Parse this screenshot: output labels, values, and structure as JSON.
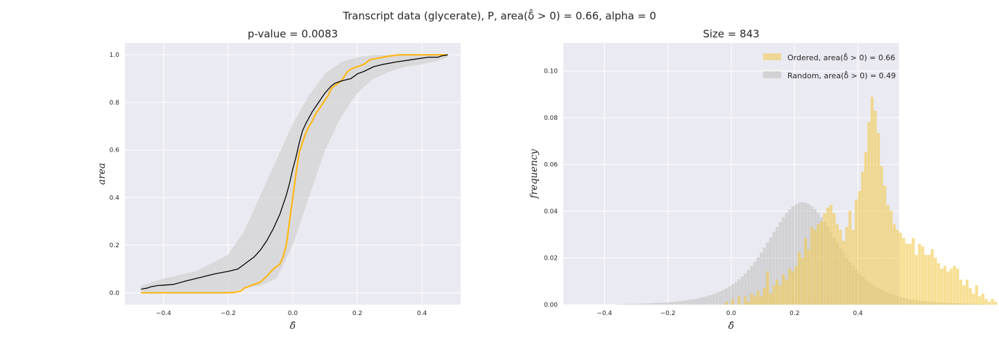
{
  "figure": {
    "suptitle": "Transcript data (glycerate), P, area(δ̂ > 0) = 0.66, alpha = 0"
  },
  "chart_data": [
    {
      "type": "line",
      "title": "p-value = 0.0083",
      "xlabel": "δ̂",
      "ylabel": "area",
      "xlim": [
        -0.52,
        0.52
      ],
      "ylim": [
        -0.05,
        1.05
      ],
      "xticks": [
        -0.4,
        -0.2,
        0.0,
        0.2,
        0.4
      ],
      "xtick_labels": [
        "−0.4",
        "−0.2",
        "0.0",
        "0.2",
        "0.4"
      ],
      "yticks": [
        0.0,
        0.2,
        0.4,
        0.6,
        0.8,
        1.0
      ],
      "ytick_labels": [
        "0.0",
        "0.2",
        "0.4",
        "0.6",
        "0.8",
        "1.0"
      ],
      "grid": true,
      "colors": {
        "ordered": "#FFB612",
        "random": "#000000",
        "band": "#d3d3d3",
        "bg": "#EAEAF2"
      },
      "series": [
        {
          "key": "ordered",
          "x": [
            -0.47,
            -0.2,
            -0.18,
            -0.16,
            -0.15,
            -0.13,
            -0.12,
            -0.1,
            -0.08,
            -0.06,
            -0.04,
            -0.03,
            -0.02,
            -0.01,
            0.0,
            0.01,
            0.02,
            0.03,
            0.04,
            0.05,
            0.06,
            0.07,
            0.08,
            0.09,
            0.1,
            0.11,
            0.12,
            0.13,
            0.14,
            0.15,
            0.16,
            0.17,
            0.18,
            0.2,
            0.22,
            0.24,
            0.26,
            0.28,
            0.3,
            0.33,
            0.36,
            0.4,
            0.44,
            0.48
          ],
          "y": [
            0.0,
            0.0,
            0.002,
            0.008,
            0.02,
            0.03,
            0.035,
            0.045,
            0.07,
            0.1,
            0.12,
            0.15,
            0.2,
            0.3,
            0.4,
            0.5,
            0.59,
            0.63,
            0.67,
            0.7,
            0.72,
            0.75,
            0.77,
            0.79,
            0.81,
            0.83,
            0.86,
            0.87,
            0.88,
            0.89,
            0.91,
            0.93,
            0.94,
            0.95,
            0.96,
            0.98,
            0.985,
            0.99,
            0.995,
            1.0,
            1.0,
            1.0,
            1.0,
            1.0
          ]
        },
        {
          "key": "random",
          "x": [
            -0.47,
            -0.45,
            -0.44,
            -0.42,
            -0.4,
            -0.37,
            -0.33,
            -0.3,
            -0.27,
            -0.24,
            -0.2,
            -0.17,
            -0.16,
            -0.14,
            -0.12,
            -0.1,
            -0.08,
            -0.06,
            -0.04,
            -0.02,
            -0.01,
            0.0,
            0.01,
            0.02,
            0.03,
            0.04,
            0.06,
            0.08,
            0.1,
            0.12,
            0.13,
            0.15,
            0.18,
            0.2,
            0.22,
            0.25,
            0.28,
            0.32,
            0.37,
            0.42,
            0.45,
            0.46,
            0.48
          ],
          "y": [
            0.015,
            0.02,
            0.025,
            0.03,
            0.032,
            0.035,
            0.05,
            0.06,
            0.07,
            0.08,
            0.09,
            0.1,
            0.11,
            0.13,
            0.15,
            0.18,
            0.22,
            0.27,
            0.33,
            0.41,
            0.46,
            0.52,
            0.57,
            0.63,
            0.68,
            0.71,
            0.76,
            0.8,
            0.84,
            0.87,
            0.88,
            0.89,
            0.9,
            0.92,
            0.93,
            0.95,
            0.96,
            0.97,
            0.98,
            0.99,
            0.99,
            0.995,
            1.0
          ]
        }
      ],
      "band": {
        "x": [
          -0.47,
          -0.4,
          -0.3,
          -0.2,
          -0.15,
          -0.1,
          -0.05,
          0.0,
          0.05,
          0.1,
          0.15,
          0.2,
          0.25,
          0.3,
          0.35,
          0.4,
          0.45,
          0.48
        ],
        "lower": [
          0.0,
          0.0,
          0.0,
          0.0,
          0.02,
          0.03,
          0.06,
          0.2,
          0.4,
          0.6,
          0.74,
          0.84,
          0.9,
          0.93,
          0.95,
          0.96,
          0.975,
          0.99
        ],
        "upper": [
          0.03,
          0.06,
          0.09,
          0.16,
          0.26,
          0.41,
          0.56,
          0.71,
          0.83,
          0.92,
          0.97,
          0.99,
          1.0,
          1.0,
          1.0,
          1.0,
          1.0,
          1.0
        ]
      }
    },
    {
      "type": "bar",
      "title": "Size = 843",
      "xlabel": "δ̂",
      "ylabel": "frequency",
      "xlim": [
        -0.53,
        0.53
      ],
      "ylim": [
        0.0,
        0.112
      ],
      "xticks": [
        -0.4,
        -0.2,
        0.0,
        0.2,
        0.4
      ],
      "xtick_labels": [
        "−0.4",
        "−0.2",
        "0.0",
        "0.2",
        "0.4"
      ],
      "yticks": [
        0.0,
        0.02,
        0.04,
        0.06,
        0.08,
        0.1
      ],
      "ytick_labels": [
        "0.00",
        "0.02",
        "0.04",
        "0.06",
        "0.08",
        "0.10"
      ],
      "grid": true,
      "legend_position": "top-right",
      "bin_start": -0.5,
      "bin_width": 0.01,
      "colors": {
        "ordered": "#F2C94C",
        "random": "#BDBDBD",
        "bg": "#EAEAF2"
      },
      "series": [
        {
          "key": "ordered",
          "name": "Ordered, area(δ̂ > 0) = 0.66",
          "values": [
            0,
            0,
            0,
            0,
            0,
            0,
            0,
            0,
            0,
            0,
            0,
            0,
            0,
            0,
            0,
            0,
            0,
            0,
            0,
            0,
            0,
            0,
            0,
            0,
            0,
            0,
            0,
            0,
            0,
            0,
            0,
            0,
            0,
            0,
            0,
            0,
            0,
            0,
            0,
            0,
            0,
            0,
            0,
            0,
            0,
            0,
            0,
            0,
            0.0012,
            0,
            0.0024,
            0.0,
            0.0036,
            0.0,
            0.0036,
            0.0012,
            0.0047,
            0.0036,
            0.0059,
            0.0036,
            0.0071,
            0.0142,
            0.0047,
            0.0083,
            0.0107,
            0.0083,
            0.013,
            0.0107,
            0.0154,
            0.0142,
            0.0165,
            0.0225,
            0.0201,
            0.0284,
            0.0237,
            0.0332,
            0.032,
            0.0344,
            0.0356,
            0.0391,
            0.0415,
            0.0427,
            0.0391,
            0.0344,
            0.032,
            0.0273,
            0.0332,
            0.0403,
            0.032,
            0.045,
            0.0486,
            0.0569,
            0.0652,
            0.0782,
            0.089,
            0.083,
            0.0735,
            0.0593,
            0.051,
            0.0427,
            0.0403,
            0.0344,
            0.032,
            0.0308,
            0.0285,
            0.0261,
            0.0261,
            0.0285,
            0.0213,
            0.0261,
            0.0249,
            0.0213,
            0.0213,
            0.0237,
            0.0201,
            0.0178,
            0.0154,
            0.0166,
            0.0142,
            0.0154,
            0.0166,
            0.0154,
            0.0107,
            0.0083,
            0.0107,
            0.0071,
            0.0047,
            0.0083,
            0.0036,
            0.0047,
            0.0024,
            0.0012,
            0.0024,
            0.0012,
            0,
            0.0012,
            0.0012,
            0,
            0.0012,
            0,
            0,
            0,
            0,
            0,
            0,
            0,
            0,
            0,
            0,
            0,
            0,
            0,
            0,
            0,
            0,
            0,
            0,
            0,
            0,
            0,
            0,
            0,
            0,
            0,
            0,
            0,
            0,
            0,
            0
          ]
        },
        {
          "key": "random",
          "name": "Random, area(δ̂ > 0) = 0.49",
          "values": [
            0,
            0,
            0,
            0,
            0,
            0,
            0,
            0,
            0,
            0,
            0,
            0,
            0,
            0,
            0.0002,
            0.0002,
            0.0003,
            0.0003,
            0.0004,
            0.0004,
            0.0004,
            0.0005,
            0.0005,
            0.0006,
            0.0006,
            0.0007,
            0.0008,
            0.0008,
            0.0009,
            0.001,
            0.0011,
            0.0012,
            0.0013,
            0.0015,
            0.0016,
            0.0018,
            0.002,
            0.0022,
            0.0024,
            0.0027,
            0.003,
            0.0033,
            0.0037,
            0.0041,
            0.0045,
            0.0051,
            0.0057,
            0.0063,
            0.007,
            0.0078,
            0.0087,
            0.0097,
            0.0108,
            0.0121,
            0.0134,
            0.0149,
            0.0166,
            0.0184,
            0.0203,
            0.0223,
            0.0244,
            0.0266,
            0.0288,
            0.0311,
            0.0333,
            0.0354,
            0.0374,
            0.0392,
            0.0408,
            0.0421,
            0.043,
            0.0436,
            0.0438,
            0.0436,
            0.043,
            0.0421,
            0.0408,
            0.0392,
            0.0374,
            0.0354,
            0.0333,
            0.0311,
            0.0288,
            0.0266,
            0.0244,
            0.0223,
            0.0203,
            0.0184,
            0.0166,
            0.0149,
            0.0134,
            0.0121,
            0.0108,
            0.0097,
            0.0087,
            0.0078,
            0.007,
            0.0063,
            0.0057,
            0.0051,
            0.0045,
            0.0041,
            0.0037,
            0.0033,
            0.003,
            0.0027,
            0.0024,
            0.0022,
            0.002,
            0.0018,
            0.0016,
            0.0015,
            0.0013,
            0.0012,
            0.0011,
            0.001,
            0.0009,
            0.0008,
            0.0008,
            0.0007,
            0.0006,
            0.0006,
            0.0005,
            0.0005,
            0.0004,
            0.0004,
            0.0004,
            0.0003,
            0.0003,
            0.0002,
            0.0002,
            0,
            0,
            0,
            0,
            0,
            0,
            0,
            0,
            0,
            0,
            0,
            0,
            0,
            0,
            0,
            0,
            0,
            0,
            0,
            0,
            0,
            0,
            0,
            0,
            0,
            0,
            0,
            0,
            0,
            0,
            0,
            0,
            0,
            0,
            0,
            0,
            0,
            0,
            0,
            0
          ]
        }
      ]
    }
  ]
}
